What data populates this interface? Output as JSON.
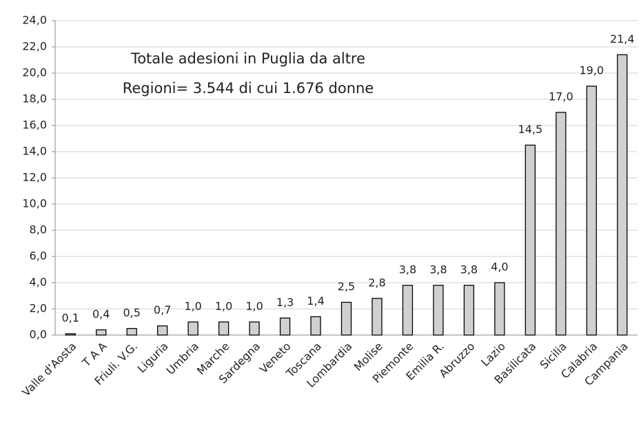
{
  "chart_data": {
    "type": "bar",
    "annotations": [
      "Totale adesioni in Puglia da altre",
      "Regioni= 3.544 di cui 1.676 donne"
    ],
    "categories": [
      "Valle d'Aosta",
      "T A A",
      "Friuli. V.G.",
      "Liguria",
      "Umbria",
      "Marche",
      "Sardegna",
      "Veneto",
      "Toscana",
      "Lombardia",
      "Molise",
      "Piemonte",
      "Emilia R.",
      "Abruzzo",
      "Lazio",
      "Basilicata",
      "Sicilia",
      "Calabria",
      "Campania"
    ],
    "values": [
      0.1,
      0.4,
      0.5,
      0.7,
      1.0,
      1.0,
      1.0,
      1.3,
      1.4,
      2.5,
      2.8,
      3.8,
      3.8,
      3.8,
      4.0,
      14.5,
      17.0,
      19.0,
      21.4
    ],
    "value_labels": [
      "0,1",
      "0,4",
      "0,5",
      "0,7",
      "1,0",
      "1,0",
      "1,0",
      "1,3",
      "1,4",
      "2,5",
      "2,8",
      "3,8",
      "3,8",
      "3,8",
      "4,0",
      "14,5",
      "17,0",
      "19,0",
      "21,4"
    ],
    "color": "#d0d0d0",
    "ylim": [
      0,
      24
    ],
    "yticks": [
      {
        "value": 0,
        "label": "0,0"
      },
      {
        "value": 2,
        "label": "2,0"
      },
      {
        "value": 4,
        "label": "4,0"
      },
      {
        "value": 6,
        "label": "6,0"
      },
      {
        "value": 8,
        "label": "8,0"
      },
      {
        "value": 10,
        "label": "10,0"
      },
      {
        "value": 12,
        "label": "12,0"
      },
      {
        "value": 14,
        "label": "14,0"
      },
      {
        "value": 16,
        "label": "16,0"
      },
      {
        "value": 18,
        "label": "18,0"
      },
      {
        "value": 20,
        "label": "20,0"
      },
      {
        "value": 22,
        "label": "22,0"
      },
      {
        "value": 24,
        "label": "24,0"
      }
    ],
    "grid": true
  }
}
